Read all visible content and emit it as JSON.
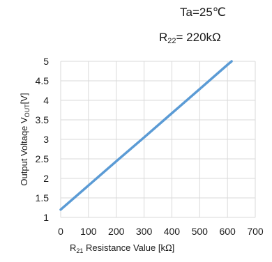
{
  "annotations": {
    "ta": {
      "prefix": "Ta=25",
      "unit": "℃"
    },
    "r22": {
      "main": "R",
      "sub": "22",
      "rest": "= 220kΩ"
    }
  },
  "chart_data": {
    "type": "line",
    "title": "",
    "xlabel": {
      "main": "R",
      "sub": "21",
      "rest": " Resistance Value [kΩ]"
    },
    "ylabel": {
      "main": "Output Voltaqe V",
      "sub": "OUT",
      "rest": "[V]"
    },
    "xlim": [
      0,
      700
    ],
    "ylim": [
      1,
      5
    ],
    "xticks": [
      "0",
      "100",
      "200",
      "300",
      "400",
      "500",
      "600",
      "700"
    ],
    "yticks": [
      "1",
      "1.5",
      "2",
      "2.5",
      "3",
      "3.5",
      "4",
      "4.5",
      "5"
    ],
    "grid": true,
    "legend": "none",
    "line_color": "#5b9bd5",
    "series": [
      {
        "x": [
          0,
          100,
          200,
          300,
          400,
          500,
          600,
          615
        ],
        "y": [
          1.2,
          1.82,
          2.44,
          3.05,
          3.67,
          4.29,
          4.91,
          5.0
        ]
      }
    ]
  }
}
